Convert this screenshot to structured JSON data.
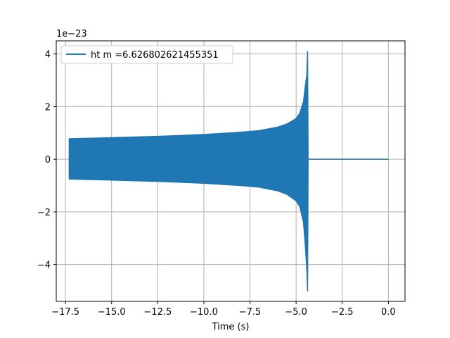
{
  "chart_data": {
    "type": "line",
    "title": "",
    "xlabel": "Time (s)",
    "ylabel": "",
    "y_offset_text": "1e−23",
    "xlim": [
      -18.0,
      0.9
    ],
    "ylim": [
      -5.4,
      4.5
    ],
    "x_ticks": [
      -17.5,
      -15.0,
      -12.5,
      -10.0,
      -7.5,
      -5.0,
      -2.5,
      0.0
    ],
    "x_tick_labels": [
      "−17.5",
      "−15.0",
      "−12.5",
      "−10.0",
      "−7.5",
      "−5.0",
      "−2.5",
      "0.0"
    ],
    "y_ticks": [
      -4,
      -2,
      0,
      2,
      4
    ],
    "y_tick_labels": [
      "−4",
      "−2",
      "0",
      "2",
      "4"
    ],
    "grid": true,
    "legend_position": "top-left",
    "colors": {
      "series": "#1f77b4",
      "grid": "#b0b0b0"
    },
    "series": [
      {
        "name": "ht m =6.626802621455351",
        "description_values": "Oscillating strain waveform (chirp). Envelope given as [time_s, upper_e-23, lower_e-23].",
        "envelope": [
          [
            -17.3,
            0.78,
            -0.75
          ],
          [
            -15.0,
            0.82,
            -0.79
          ],
          [
            -12.5,
            0.87,
            -0.84
          ],
          [
            -10.0,
            0.94,
            -0.91
          ],
          [
            -8.0,
            1.03,
            -1.0
          ],
          [
            -7.0,
            1.09,
            -1.06
          ],
          [
            -6.0,
            1.22,
            -1.2
          ],
          [
            -5.5,
            1.34,
            -1.33
          ],
          [
            -5.0,
            1.55,
            -1.58
          ],
          [
            -4.8,
            1.75,
            -1.8
          ],
          [
            -4.6,
            2.2,
            -2.4
          ],
          [
            -4.5,
            2.8,
            -3.3
          ],
          [
            -4.42,
            3.2,
            -4.2
          ],
          [
            -4.38,
            4.1,
            -5.0
          ],
          [
            -4.35,
            0.0,
            0.0
          ]
        ],
        "flat_segment": {
          "x": [
            -4.35,
            0.0
          ],
          "y": 0.0
        }
      }
    ]
  }
}
